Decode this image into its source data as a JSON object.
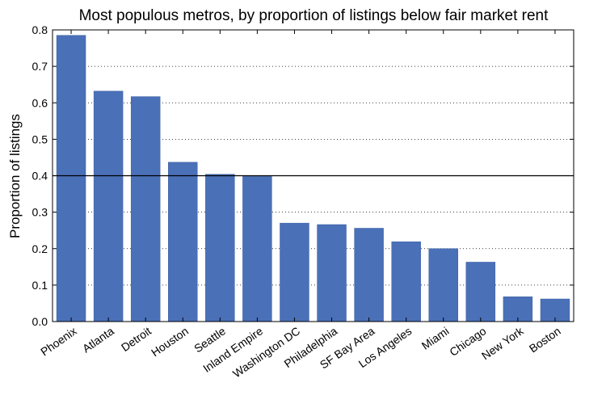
{
  "chart_data": {
    "type": "bar",
    "title": "Most populous metros, by proportion of listings below fair market rent",
    "xlabel": "",
    "ylabel": "Proportion of listings",
    "categories": [
      "Phoenix",
      "Atlanta",
      "Detroit",
      "Houston",
      "Seattle",
      "Inland Empire",
      "Washington DC",
      "Philadelphia",
      "SF Bay Area",
      "Los Angeles",
      "Miami",
      "Chicago",
      "New York",
      "Boston"
    ],
    "values": [
      0.785,
      0.632,
      0.617,
      0.437,
      0.404,
      0.398,
      0.27,
      0.266,
      0.256,
      0.219,
      0.2,
      0.163,
      0.068,
      0.062
    ],
    "ylim": [
      0,
      0.8
    ],
    "yticks": [
      "0.0",
      "0.1",
      "0.2",
      "0.3",
      "0.4",
      "0.5",
      "0.6",
      "0.7",
      "0.8"
    ],
    "reference_line": 0.4,
    "grid": "horizontal dotted",
    "legend": "none",
    "bar_color": "#4a70b8"
  }
}
